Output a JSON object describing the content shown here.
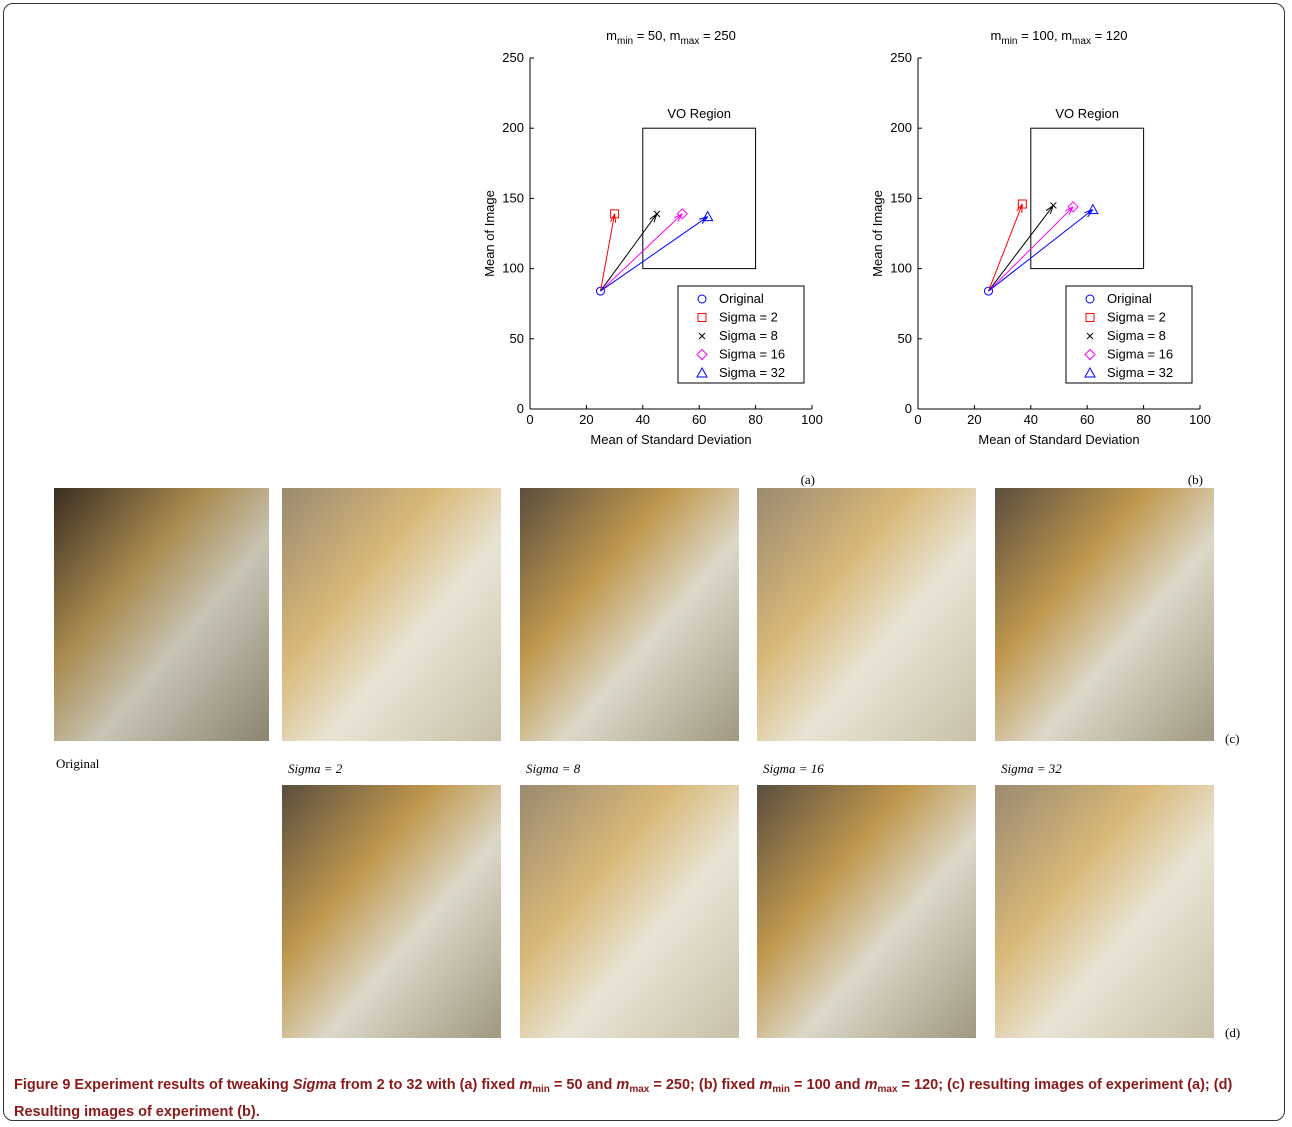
{
  "chart_data": [
    {
      "type": "scatter",
      "panel": "(a)",
      "title": [
        "m",
        "min",
        " = 50, m",
        "max",
        " = 250"
      ],
      "xlabel": "Mean of Standard Deviation",
      "ylabel": "Mean of Image",
      "xlim": [
        0,
        100
      ],
      "xticks": [
        0,
        20,
        40,
        60,
        80,
        100
      ],
      "ylim": [
        0,
        250
      ],
      "yticks": [
        0,
        50,
        100,
        150,
        200,
        250
      ],
      "region": {
        "label": "VO Region",
        "x": [
          40,
          80
        ],
        "y": [
          100,
          200
        ]
      },
      "arrows": true,
      "series": [
        {
          "name": "Original",
          "color": "#0000ff",
          "marker": "circle",
          "x": [
            25
          ],
          "values": [
            84
          ]
        },
        {
          "name": "Sigma = 2",
          "color": "#ff0000",
          "marker": "square",
          "x": [
            30
          ],
          "values": [
            139
          ]
        },
        {
          "name": "Sigma = 8",
          "color": "#000000",
          "marker": "x",
          "x": [
            45
          ],
          "values": [
            139
          ]
        },
        {
          "name": "Sigma = 16",
          "color": "#ff00ff",
          "marker": "diamond",
          "x": [
            54
          ],
          "values": [
            139
          ]
        },
        {
          "name": "Sigma = 32",
          "color": "#0000ff",
          "marker": "triangle",
          "x": [
            63
          ],
          "values": [
            137
          ]
        }
      ]
    },
    {
      "type": "scatter",
      "panel": "(b)",
      "title": [
        "m",
        "min",
        " = 100, m",
        "max",
        " = 120"
      ],
      "xlabel": "Mean of Standard Deviation",
      "ylabel": "Mean of Image",
      "xlim": [
        0,
        100
      ],
      "xticks": [
        0,
        20,
        40,
        60,
        80,
        100
      ],
      "ylim": [
        0,
        250
      ],
      "yticks": [
        0,
        50,
        100,
        150,
        200,
        250
      ],
      "region": {
        "label": "VO Region",
        "x": [
          40,
          80
        ],
        "y": [
          100,
          200
        ]
      },
      "arrows": true,
      "series": [
        {
          "name": "Original",
          "color": "#0000ff",
          "marker": "circle",
          "x": [
            25
          ],
          "values": [
            84
          ]
        },
        {
          "name": "Sigma = 2",
          "color": "#ff0000",
          "marker": "square",
          "x": [
            37
          ],
          "values": [
            146
          ]
        },
        {
          "name": "Sigma = 8",
          "color": "#000000",
          "marker": "x",
          "x": [
            48
          ],
          "values": [
            145
          ]
        },
        {
          "name": "Sigma = 16",
          "color": "#ff00ff",
          "marker": "diamond",
          "x": [
            55
          ],
          "values": [
            144
          ]
        },
        {
          "name": "Sigma = 32",
          "color": "#0000ff",
          "marker": "triangle",
          "x": [
            62
          ],
          "values": [
            142
          ]
        }
      ]
    }
  ],
  "images": {
    "labels": [
      "Original",
      "Sigma = 2",
      "Sigma = 8",
      "Sigma = 16",
      "Sigma = 32"
    ],
    "row_labels": [
      "(c)",
      "(d)"
    ]
  },
  "caption": [
    {
      "text": "Figure 9",
      "style": "bold"
    },
    {
      "text": " Experiment results of tweaking ",
      "style": "plain"
    },
    {
      "text": "Sigma",
      "style": "italic"
    },
    {
      "text": " from 2 to 32 with (a) fixed ",
      "style": "plain"
    },
    {
      "text": "m",
      "style": "italic"
    },
    {
      "text": "min",
      "style": "sub"
    },
    {
      "text": " = 50 and ",
      "style": "plain"
    },
    {
      "text": "m",
      "style": "italic"
    },
    {
      "text": "max",
      "style": "sub"
    },
    {
      "text": " = 250; (b) fixed ",
      "style": "plain"
    },
    {
      "text": "m",
      "style": "italic"
    },
    {
      "text": "min",
      "style": "sub"
    },
    {
      "text": " = 100 and ",
      "style": "plain"
    },
    {
      "text": "m",
      "style": "italic"
    },
    {
      "text": "max",
      "style": "sub"
    },
    {
      "text": " = 120; (c) resulting images of experiment (a); (d) Resulting images of experiment (b)",
      "style": "plain"
    },
    {
      "text": ".",
      "style": "plain"
    }
  ]
}
